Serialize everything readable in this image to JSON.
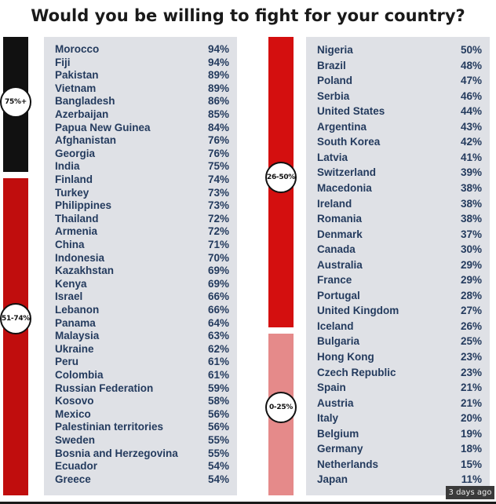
{
  "title": "Would you be willing to fight for your country?",
  "timestamp": "3 days ago",
  "colors": {
    "band_75_plus": "#111111",
    "band_51_74": "#c00d0d",
    "band_26_50": "#d40f0f",
    "band_0_25": "#e58a8a",
    "panel": "#dfe1e6",
    "text": "#243b5e"
  },
  "bands": [
    {
      "label": "75%+",
      "color": "#111111"
    },
    {
      "label": "51-74%",
      "color": "#c00d0d"
    },
    {
      "label": "26-50%",
      "color": "#d40f0f"
    },
    {
      "label": "0-25%",
      "color": "#e58a8a"
    }
  ],
  "chart_data": {
    "type": "table",
    "title": "Would you be willing to fight for your country?",
    "columns": [
      [
        {
          "country": "Morocco",
          "percent": "94%"
        },
        {
          "country": "Fiji",
          "percent": "94%"
        },
        {
          "country": "Pakistan",
          "percent": "89%"
        },
        {
          "country": "Vietnam",
          "percent": "89%"
        },
        {
          "country": "Bangladesh",
          "percent": "86%"
        },
        {
          "country": "Azerbaijan",
          "percent": "85%"
        },
        {
          "country": "Papua New Guinea",
          "percent": "84%"
        },
        {
          "country": "Afghanistan",
          "percent": "76%"
        },
        {
          "country": "Georgia",
          "percent": "76%"
        },
        {
          "country": "India",
          "percent": "75%"
        },
        {
          "country": "Finland",
          "percent": "74%"
        },
        {
          "country": "Turkey",
          "percent": "73%"
        },
        {
          "country": "Philippines",
          "percent": "73%"
        },
        {
          "country": "Thailand",
          "percent": "72%"
        },
        {
          "country": "Armenia",
          "percent": "72%"
        },
        {
          "country": "China",
          "percent": "71%"
        },
        {
          "country": "Indonesia",
          "percent": "70%"
        },
        {
          "country": "Kazakhstan",
          "percent": "69%"
        },
        {
          "country": "Kenya",
          "percent": "69%"
        },
        {
          "country": "Israel",
          "percent": "66%"
        },
        {
          "country": "Lebanon",
          "percent": "66%"
        },
        {
          "country": "Panama",
          "percent": "64%"
        },
        {
          "country": "Malaysia",
          "percent": "63%"
        },
        {
          "country": "Ukraine",
          "percent": "62%"
        },
        {
          "country": "Peru",
          "percent": "61%"
        },
        {
          "country": "Colombia",
          "percent": "61%"
        },
        {
          "country": "Russian Federation",
          "percent": "59%"
        },
        {
          "country": "Kosovo",
          "percent": "58%"
        },
        {
          "country": "Mexico",
          "percent": "56%"
        },
        {
          "country": "Palestinian territories",
          "percent": "56%"
        },
        {
          "country": "Sweden",
          "percent": "55%"
        },
        {
          "country": "Bosnia and Herzegovina",
          "percent": "55%"
        },
        {
          "country": "Ecuador",
          "percent": "54%"
        },
        {
          "country": "Greece",
          "percent": "54%"
        }
      ],
      [
        {
          "country": "Nigeria",
          "percent": "50%"
        },
        {
          "country": "Brazil",
          "percent": "48%"
        },
        {
          "country": "Poland",
          "percent": "47%"
        },
        {
          "country": "Serbia",
          "percent": "46%"
        },
        {
          "country": "United States",
          "percent": "44%"
        },
        {
          "country": "Argentina",
          "percent": "43%"
        },
        {
          "country": "South Korea",
          "percent": "42%"
        },
        {
          "country": "Latvia",
          "percent": "41%"
        },
        {
          "country": "Switzerland",
          "percent": "39%"
        },
        {
          "country": "Macedonia",
          "percent": "38%"
        },
        {
          "country": "Ireland",
          "percent": "38%"
        },
        {
          "country": "Romania",
          "percent": "38%"
        },
        {
          "country": "Denmark",
          "percent": "37%"
        },
        {
          "country": "Canada",
          "percent": "30%"
        },
        {
          "country": "Australia",
          "percent": "29%"
        },
        {
          "country": "France",
          "percent": "29%"
        },
        {
          "country": "Portugal",
          "percent": "28%"
        },
        {
          "country": "United Kingdom",
          "percent": "27%"
        },
        {
          "country": "Iceland",
          "percent": "26%"
        },
        {
          "country": "Bulgaria",
          "percent": "25%"
        },
        {
          "country": "Hong Kong",
          "percent": "23%"
        },
        {
          "country": "Czech Republic",
          "percent": "23%"
        },
        {
          "country": "Spain",
          "percent": "21%"
        },
        {
          "country": "Austria",
          "percent": "21%"
        },
        {
          "country": "Italy",
          "percent": "20%"
        },
        {
          "country": "Belgium",
          "percent": "19%"
        },
        {
          "country": "Germany",
          "percent": "18%"
        },
        {
          "country": "Netherlands",
          "percent": "15%"
        },
        {
          "country": "Japan",
          "percent": "11%"
        }
      ]
    ]
  }
}
